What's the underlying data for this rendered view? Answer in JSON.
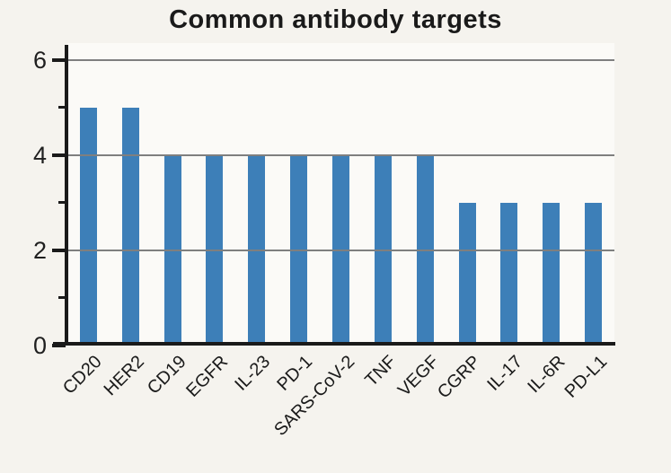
{
  "chart_data": {
    "type": "bar",
    "title": "Common antibody targets",
    "categories": [
      "CD20",
      "HER2",
      "CD19",
      "EGFR",
      "IL-23",
      "PD-1",
      "SARS-CoV-2",
      "TNF",
      "VEGF",
      "CGRP",
      "IL-17",
      "IL-6R",
      "PD-L1"
    ],
    "values": [
      5,
      5,
      4,
      4,
      4,
      4,
      4,
      4,
      4,
      3,
      3,
      3,
      3
    ],
    "xlabel": "",
    "ylabel": "",
    "yticks": [
      0,
      2,
      4,
      6
    ],
    "minor_yticks": [
      1,
      3,
      5
    ],
    "grid_values": [
      2,
      4,
      6
    ],
    "ylim": [
      0,
      6.35
    ],
    "legend": "none",
    "grid": "horizontal"
  },
  "colors": {
    "bar": "#3d7fb8",
    "gridline": "#7f7f7f",
    "axis": "#1a1a1a",
    "text": "#1f1f1f",
    "background": "#f5f3ee",
    "plot_background": "#fbfaf7"
  }
}
